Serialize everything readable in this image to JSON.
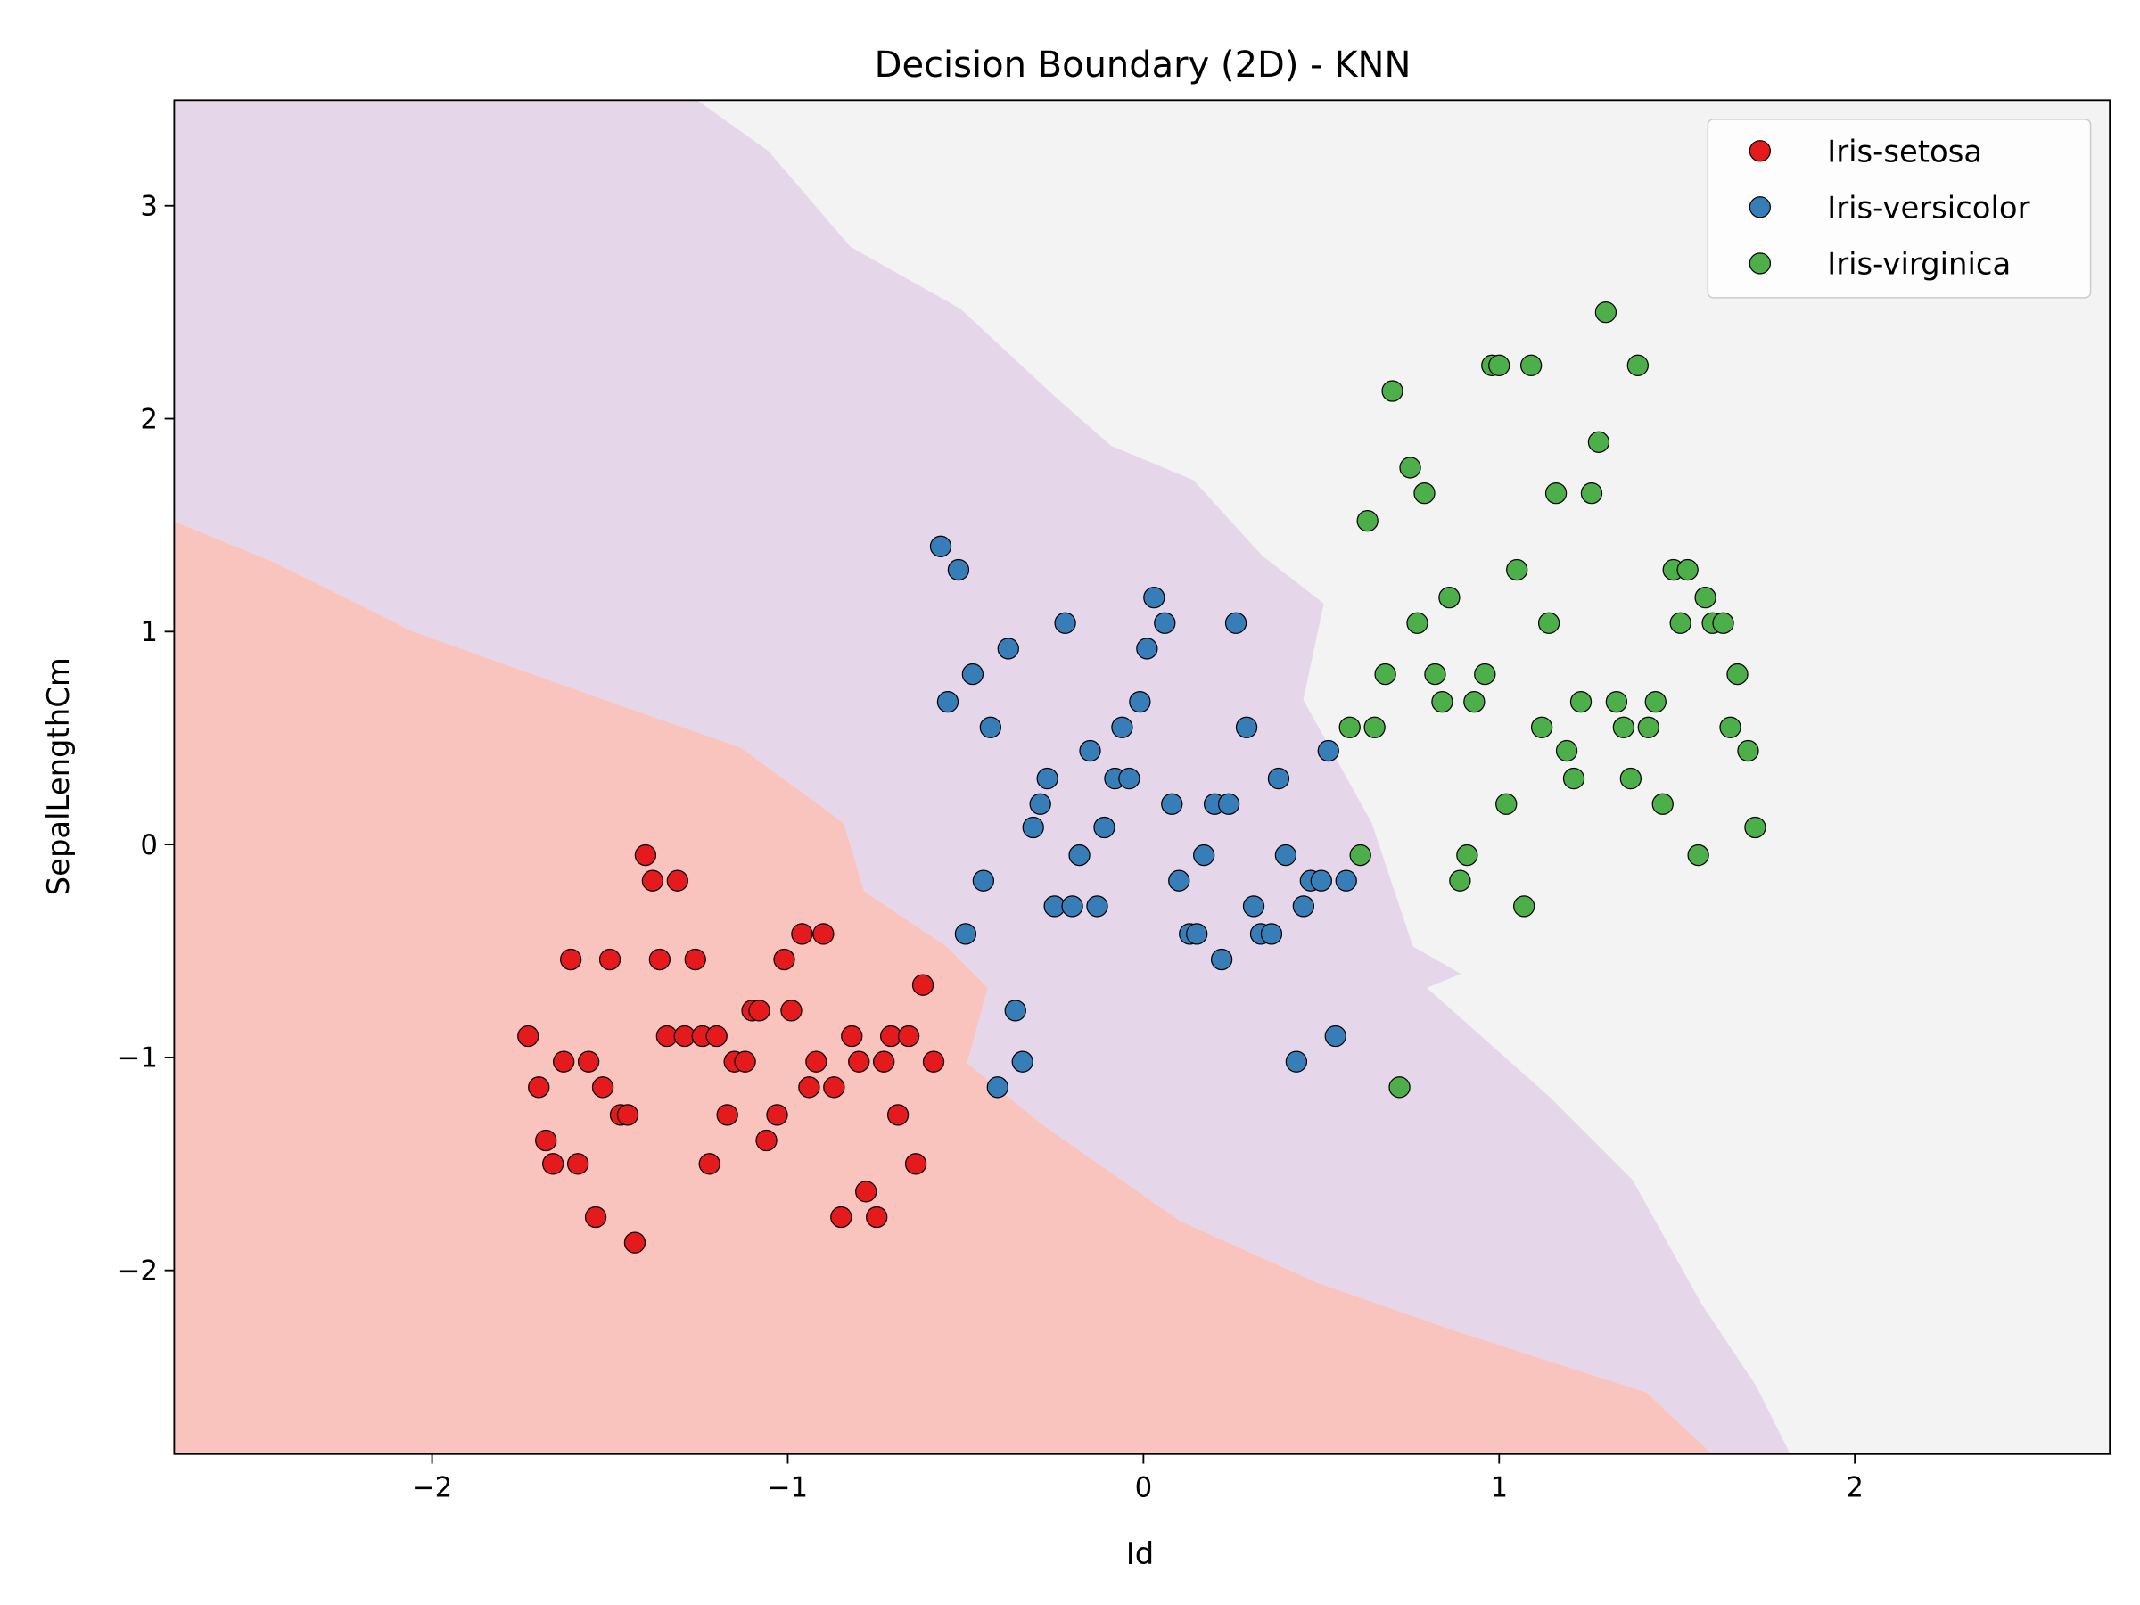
{
  "chart_data": {
    "type": "scatter",
    "title": "Decision Boundary (2D) - KNN",
    "x_label": "Id",
    "y_label": "SepalLengthCm",
    "xlim": [
      -2.725,
      2.717
    ],
    "ylim": [
      -2.863,
      3.496
    ],
    "xticks": [
      {
        "value": -2,
        "label": "−2"
      },
      {
        "value": -1,
        "label": "−1"
      },
      0,
      1,
      2
    ],
    "yticks": [
      {
        "value": -2,
        "label": "−2"
      },
      {
        "value": -1,
        "label": "−1"
      },
      0,
      1,
      2,
      3
    ],
    "legend": "upper right",
    "series": [
      {
        "name": "Iris-setosa",
        "color": "#e41a1c",
        "x": [
          -1.4,
          -1.38,
          -1.31,
          -1.61,
          -1.5,
          -1.36,
          -1.26,
          -1.01,
          -0.96,
          -0.9,
          -1.73,
          -1.34,
          -1.29,
          -1.24,
          -1.2,
          -1.1,
          -1.08,
          -0.99,
          -0.62,
          -1.7,
          -1.63,
          -1.56,
          -1.15,
          -1.12,
          -0.92,
          -0.82,
          -0.8,
          -0.73,
          -0.71,
          -0.66,
          -0.59,
          -1.52,
          -0.94,
          -0.87,
          -1.68,
          -1.47,
          -1.45,
          -1.17,
          -1.03,
          -0.69,
          -1.66,
          -1.59,
          -1.22,
          -1.06,
          -0.64,
          -1.54,
          -0.85,
          -0.75,
          -0.78,
          -1.43
        ],
        "y": [
          -0.05,
          -0.17,
          -0.17,
          -0.54,
          -0.54,
          -0.54,
          -0.54,
          -0.54,
          -0.42,
          -0.42,
          -0.9,
          -0.9,
          -0.9,
          -0.9,
          -0.9,
          -0.78,
          -0.78,
          -0.78,
          -0.66,
          -1.14,
          -1.02,
          -1.02,
          -1.02,
          -1.02,
          -1.02,
          -0.9,
          -1.02,
          -1.02,
          -0.9,
          -0.9,
          -1.02,
          -1.14,
          -1.14,
          -1.14,
          -1.39,
          -1.27,
          -1.27,
          -1.27,
          -1.27,
          -1.27,
          -1.5,
          -1.5,
          -1.5,
          -1.39,
          -1.5,
          -1.75,
          -1.75,
          -1.75,
          -1.63,
          -1.87
        ]
      },
      {
        "name": "Iris-versicolor",
        "color": "#377eb8",
        "x": [
          -0.57,
          -0.52,
          -0.22,
          0.03,
          0.06,
          0.26,
          0.01,
          -0.38,
          -0.48,
          -0.55,
          -0.43,
          -0.06,
          -0.01,
          0.29,
          0.52,
          -0.15,
          -0.27,
          -0.08,
          -0.04,
          -0.29,
          0.08,
          0.2,
          0.24,
          0.38,
          -0.31,
          -0.11,
          -0.18,
          0.17,
          0.4,
          -0.45,
          0.1,
          0.47,
          0.5,
          0.57,
          -0.25,
          -0.2,
          -0.13,
          0.31,
          0.45,
          -0.5,
          0.13,
          0.15,
          0.33,
          0.36,
          0.22,
          -0.36,
          -0.34,
          0.43,
          0.54,
          -0.41
        ],
        "y": [
          1.4,
          1.29,
          1.04,
          1.16,
          1.04,
          1.04,
          0.92,
          0.92,
          0.8,
          0.67,
          0.55,
          0.55,
          0.67,
          0.55,
          0.44,
          0.44,
          0.31,
          0.31,
          0.31,
          0.19,
          0.19,
          0.19,
          0.19,
          0.31,
          0.08,
          0.08,
          -0.05,
          -0.05,
          -0.05,
          -0.17,
          -0.17,
          -0.17,
          -0.17,
          -0.17,
          -0.29,
          -0.29,
          -0.29,
          -0.29,
          -0.29,
          -0.42,
          -0.42,
          -0.42,
          -0.42,
          -0.42,
          -0.54,
          -0.78,
          -1.02,
          -1.02,
          -0.9,
          -1.14
        ]
      },
      {
        "name": "Iris-virginica",
        "color": "#4daf4a",
        "x": [
          1.3,
          0.98,
          1.0,
          1.09,
          1.39,
          0.7,
          1.28,
          0.75,
          0.79,
          1.16,
          1.26,
          0.63,
          1.05,
          1.49,
          1.53,
          0.86,
          1.58,
          0.77,
          1.14,
          1.51,
          1.6,
          1.63,
          0.68,
          0.82,
          0.96,
          1.67,
          0.84,
          0.93,
          1.23,
          1.33,
          1.44,
          0.58,
          0.65,
          1.12,
          1.35,
          1.42,
          1.65,
          1.19,
          1.7,
          1.21,
          1.37,
          1.02,
          1.46,
          1.72,
          0.61,
          0.91,
          1.56,
          0.89,
          1.07,
          0.72
        ],
        "y": [
          2.5,
          2.25,
          2.25,
          2.25,
          2.25,
          2.13,
          1.89,
          1.77,
          1.65,
          1.65,
          1.65,
          1.52,
          1.29,
          1.29,
          1.29,
          1.16,
          1.16,
          1.04,
          1.04,
          1.04,
          1.04,
          1.04,
          0.8,
          0.8,
          0.8,
          0.8,
          0.67,
          0.67,
          0.67,
          0.67,
          0.67,
          0.55,
          0.55,
          0.55,
          0.55,
          0.55,
          0.55,
          0.44,
          0.44,
          0.31,
          0.31,
          0.19,
          0.19,
          0.08,
          -0.05,
          -0.05,
          -0.05,
          -0.17,
          -0.29,
          -1.14
        ]
      }
    ]
  }
}
